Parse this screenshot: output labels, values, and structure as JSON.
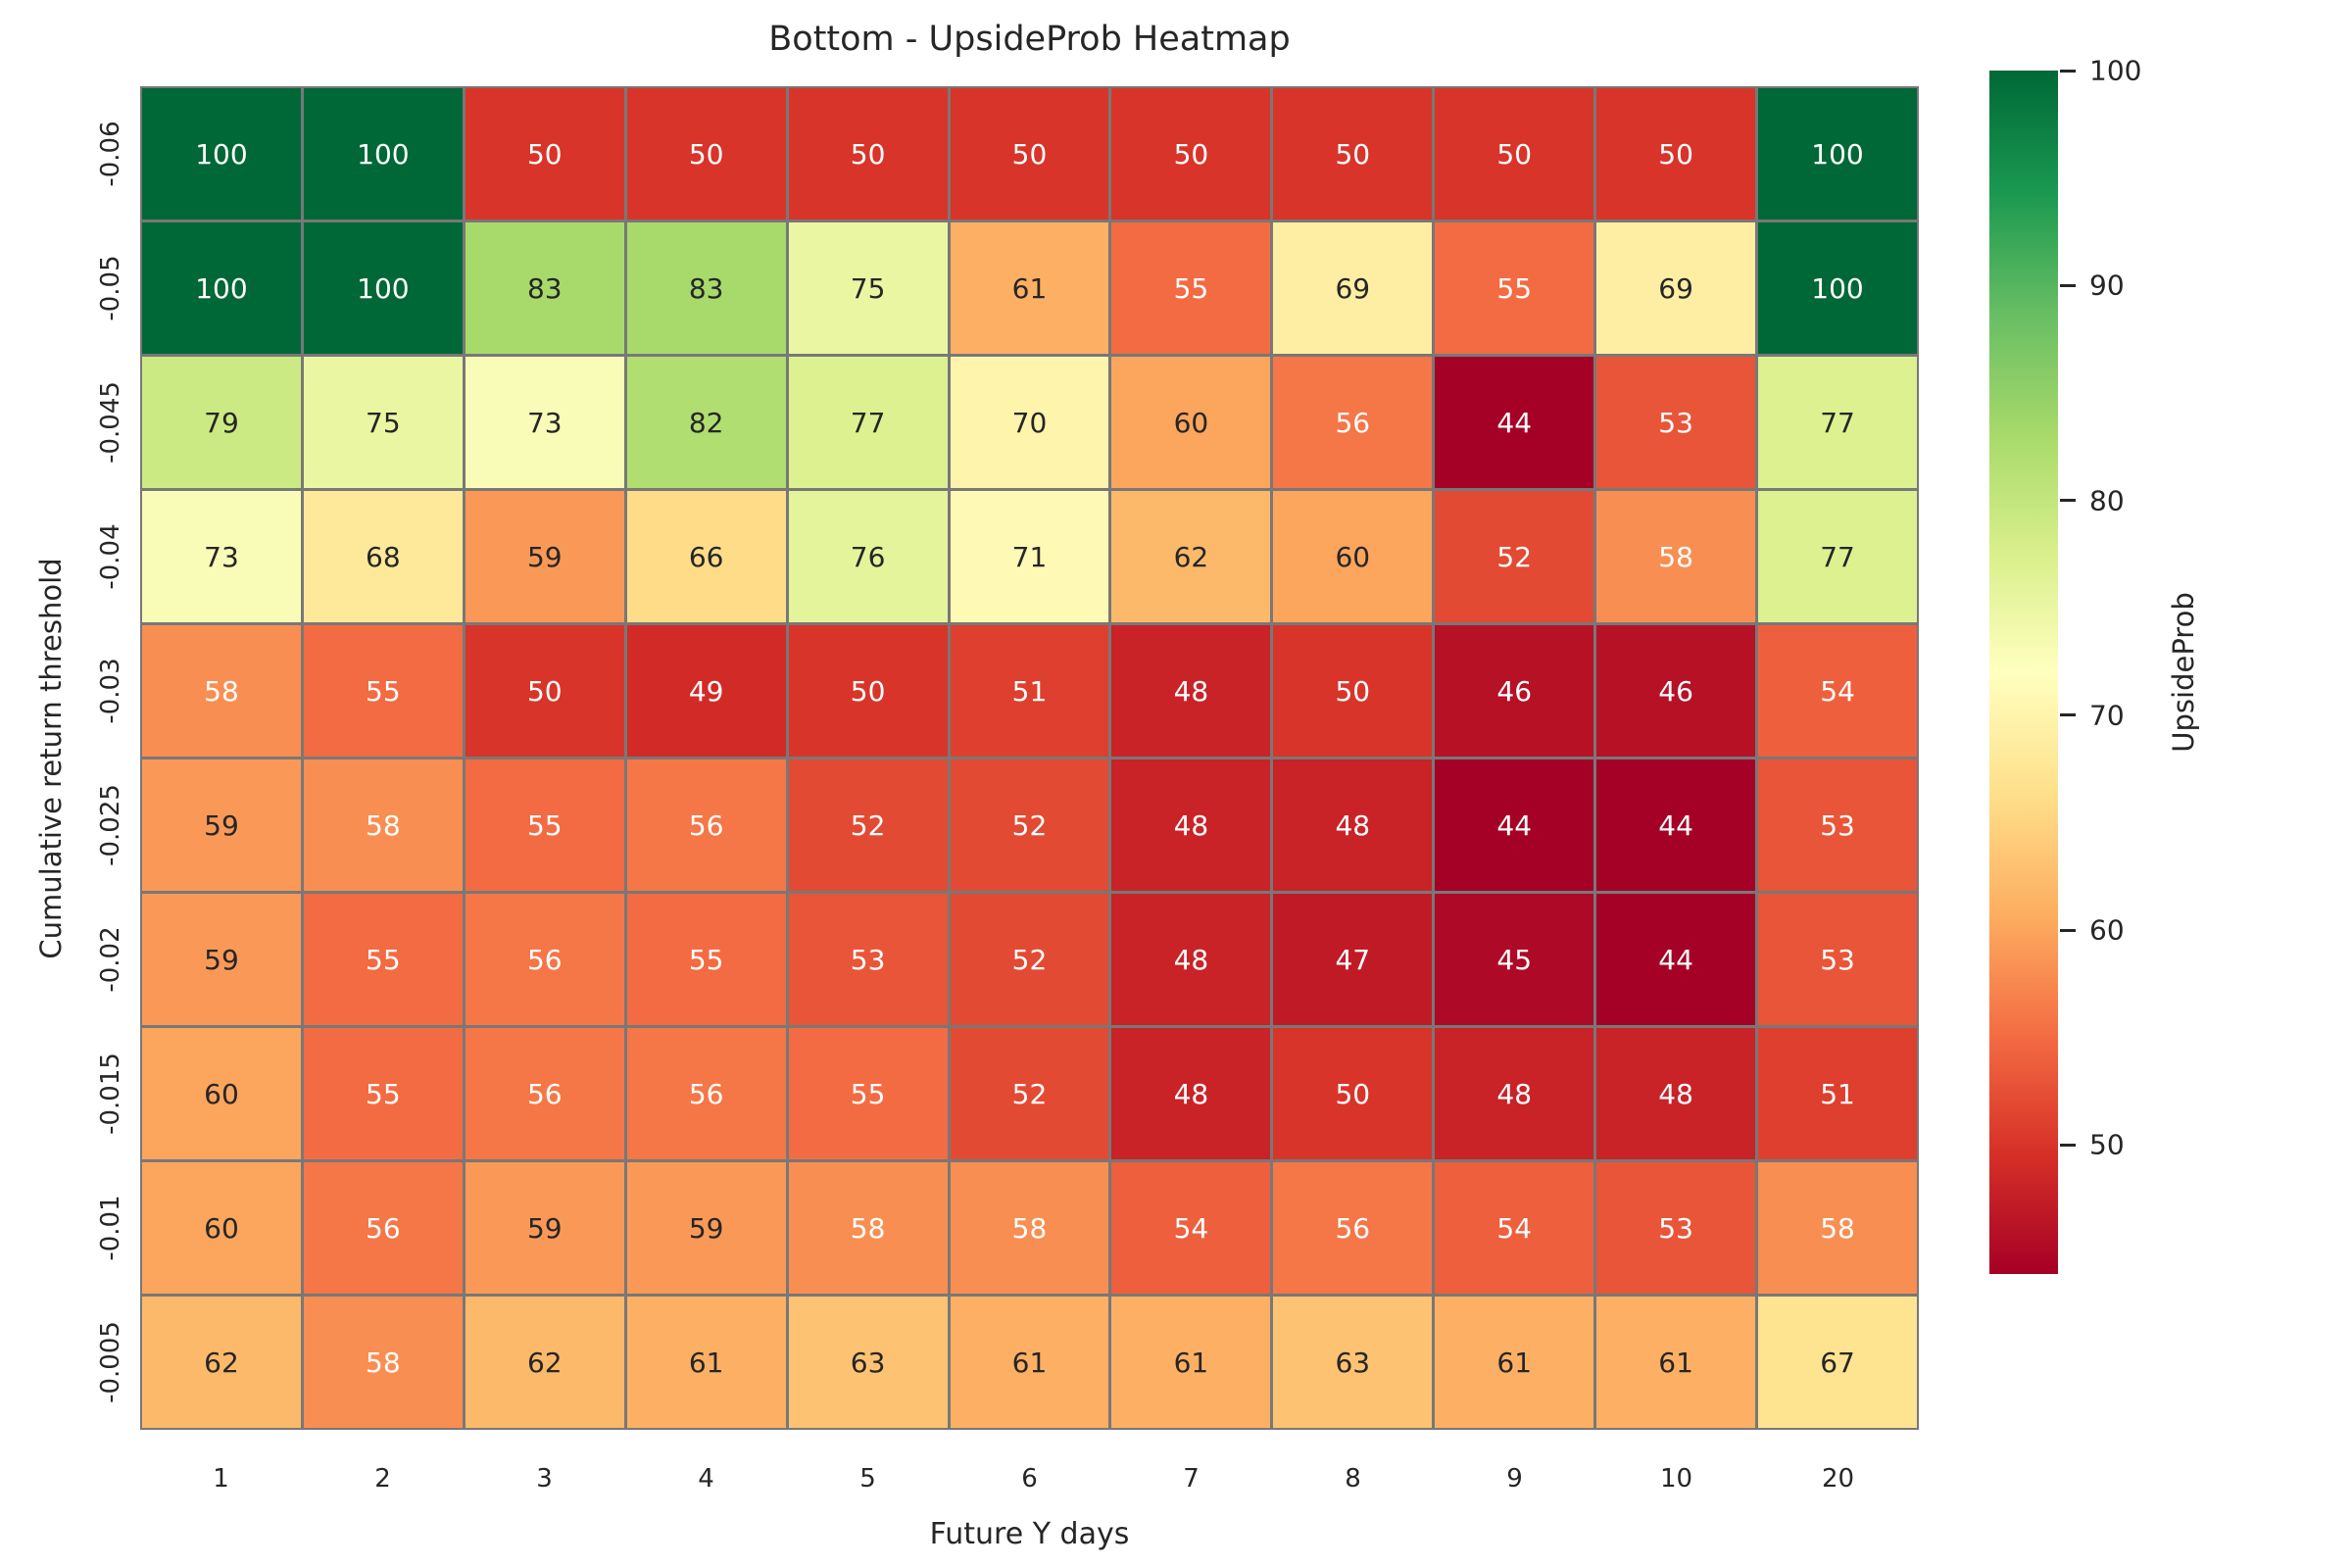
{
  "figure": {
    "background": "#ffffff"
  },
  "chart_data": {
    "type": "heatmap",
    "title": "Bottom - UpsideProb Heatmap",
    "xlabel": "Future Y days",
    "ylabel": "Cumulative return threshold",
    "x_categories": [
      "1",
      "2",
      "3",
      "4",
      "5",
      "6",
      "7",
      "8",
      "9",
      "10",
      "20"
    ],
    "y_categories": [
      "-0.06",
      "-0.05",
      "-0.045",
      "-0.04",
      "-0.03",
      "-0.025",
      "-0.02",
      "-0.015",
      "-0.01",
      "-0.005"
    ],
    "values": [
      [
        100,
        100,
        50,
        50,
        50,
        50,
        50,
        50,
        50,
        50,
        100
      ],
      [
        100,
        100,
        83,
        83,
        75,
        61,
        55,
        69,
        55,
        69,
        100
      ],
      [
        79,
        75,
        73,
        82,
        77,
        70,
        60,
        56,
        44,
        53,
        77
      ],
      [
        73,
        68,
        59,
        66,
        76,
        71,
        62,
        60,
        52,
        58,
        77
      ],
      [
        58,
        55,
        50,
        49,
        50,
        51,
        48,
        50,
        46,
        46,
        54
      ],
      [
        59,
        58,
        55,
        56,
        52,
        52,
        48,
        48,
        44,
        44,
        53
      ],
      [
        59,
        55,
        56,
        55,
        53,
        52,
        48,
        47,
        45,
        44,
        53
      ],
      [
        60,
        55,
        56,
        56,
        55,
        52,
        48,
        50,
        48,
        48,
        51
      ],
      [
        60,
        56,
        59,
        59,
        58,
        58,
        54,
        56,
        54,
        53,
        58
      ],
      [
        62,
        58,
        62,
        61,
        63,
        61,
        61,
        63,
        61,
        61,
        67
      ]
    ],
    "vmin": 44,
    "vmax": 100,
    "colormap": {
      "name": "RdYlGn",
      "stops": [
        "#a50026",
        "#d73027",
        "#f46d43",
        "#fdae61",
        "#fee08b",
        "#ffffbf",
        "#d9ef8b",
        "#a6d96a",
        "#66bd63",
        "#1a9850",
        "#006837"
      ]
    },
    "colorbar": {
      "label": "UpsideProb",
      "ticks": [
        100,
        90,
        80,
        70,
        60,
        50
      ]
    },
    "grid_line_color": "#787878",
    "annotation_colors": {
      "light": "#ffffff",
      "dark": "#262626"
    },
    "legend_position": "right",
    "grid": false
  }
}
